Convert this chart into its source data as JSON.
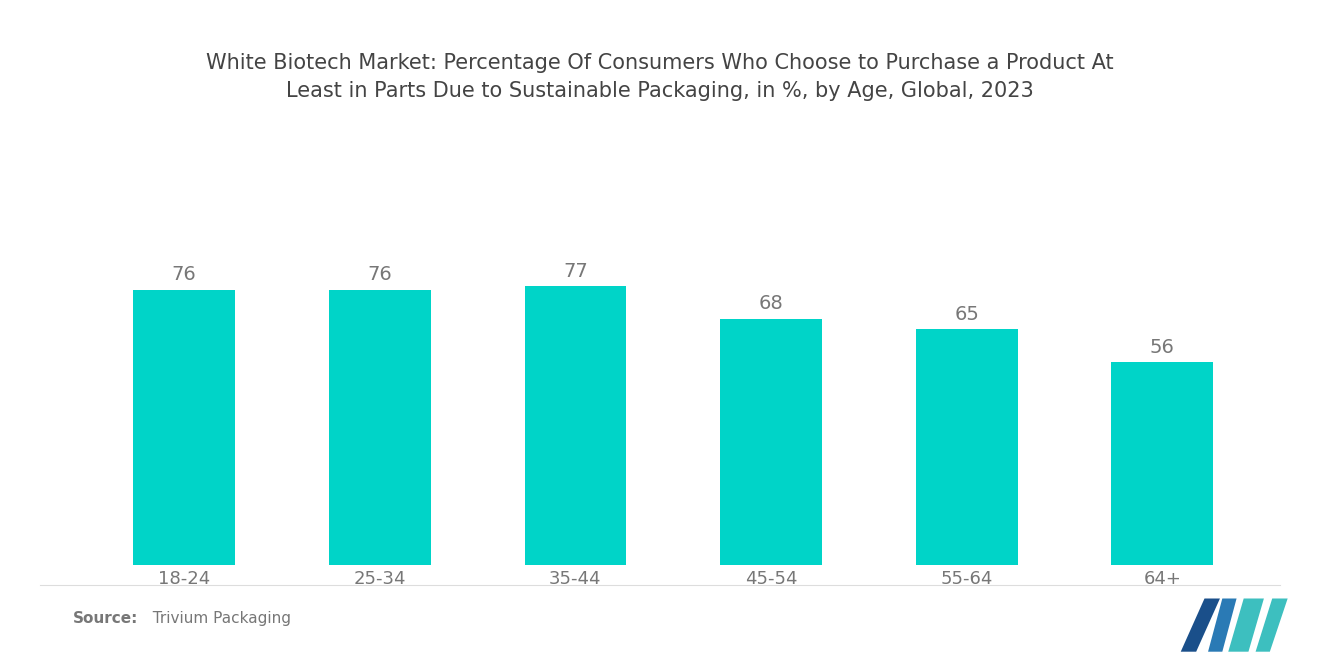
{
  "title": "White Biotech Market: Percentage Of Consumers Who Choose to Purchase a Product At\nLeast in Parts Due to Sustainable Packaging, in %, by Age, Global, 2023",
  "categories": [
    "18-24",
    "25-34",
    "35-44",
    "45-54",
    "55-64",
    "64+"
  ],
  "values": [
    76,
    76,
    77,
    68,
    65,
    56
  ],
  "bar_color": "#00D4C8",
  "label_color": "#777777",
  "title_color": "#444444",
  "background_color": "#FFFFFF",
  "source_bold": "Source:",
  "source_text": "  Trivium Packaging",
  "bar_width": 0.52,
  "ylim": [
    0,
    110
  ],
  "value_fontsize": 14,
  "xlabel_fontsize": 13,
  "title_fontsize": 15,
  "logo_left_color": "#1a4f8a",
  "logo_right_color": "#3dbfbf",
  "logo_mid_color": "#2a6fa8"
}
